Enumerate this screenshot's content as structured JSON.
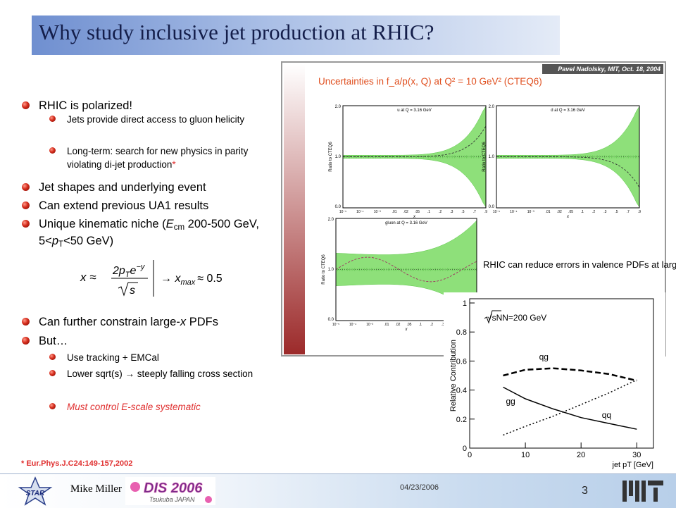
{
  "header": {
    "title": "Why study inclusive jet production at RHIC?"
  },
  "bullets": [
    {
      "level": 1,
      "parts": [
        {
          "text": "RHIC is polarized!"
        }
      ]
    },
    {
      "level": 2,
      "parts": [
        {
          "text": "Jets provide direct access to gluon helicity"
        }
      ]
    },
    {
      "level": 2,
      "parts": [
        {
          "text": "Long-term: search for new physics in parity violating di-jet production"
        },
        {
          "text": "*",
          "color": "#e03030"
        }
      ]
    },
    {
      "level": 1,
      "parts": [
        {
          "text": "Jet shapes and underlying event"
        }
      ]
    },
    {
      "level": 1,
      "parts": [
        {
          "text": "Can extend previous UA1 results"
        }
      ]
    },
    {
      "level": 1,
      "parts": [
        {
          "text": "Unique kinematic niche ("
        },
        {
          "text": "E",
          "italic": true
        },
        {
          "text": "cm",
          "sub": true
        },
        {
          "text": " 200-500 GeV, 5<"
        },
        {
          "text": "p",
          "italic": true
        },
        {
          "text": "T",
          "sub": true
        },
        {
          "text": "<50 GeV)"
        }
      ]
    },
    {
      "level": 1,
      "parts": [
        {
          "text": "Can further constrain large-"
        },
        {
          "text": "x",
          "italic": true
        },
        {
          "text": " PDFs"
        }
      ]
    },
    {
      "level": 1,
      "parts": [
        {
          "text": "But…"
        }
      ]
    },
    {
      "level": 2,
      "parts": [
        {
          "text": "Use tracking + EMCal"
        }
      ]
    },
    {
      "level": 2,
      "parts": [
        {
          "text": "Lower sqrt(s) "
        },
        {
          "text": "→"
        },
        {
          "text": " steeply falling cross section"
        }
      ]
    },
    {
      "level": 2,
      "parts": [
        {
          "text": "Must control E-scale systematic",
          "italic": true,
          "color": "#e03030"
        }
      ]
    }
  ],
  "formula": {
    "lhs": "x ≈",
    "numerator": "2p",
    "numerator_sub": "T",
    "numerator_exp": "e",
    "numerator_sup": "−y",
    "denominator": "s",
    "arrow": "→ x",
    "rhs_sub": "max",
    "rhs": "≈ 0.5"
  },
  "footnote": "* Eur.Phys.J.C24:149-157,2002",
  "footer": {
    "author": "Mike Miller",
    "date": "04/23/2006",
    "page": "3",
    "logo_left": "STAR",
    "logo_center": "DIS 2006",
    "logo_center_sub": "Tsukuba JAPAN"
  },
  "figure": {
    "stamp": "Pavel Nadolsky, MIT, Oct. 18, 2004",
    "title": "Uncertainties in f_a/p(x, Q) at Q² = 10 GeV² (CTEQ6)",
    "ylabel": "Ratio to CTEQ6",
    "xlabel": "x",
    "yticks": [
      "2.0",
      "1.0",
      "0.0"
    ],
    "xticks": [
      "10⁻⁵",
      "10⁻⁴",
      "10⁻³",
      ".01",
      ".02",
      ".05",
      ".1",
      ".2",
      ".3",
      ".5",
      ".7",
      ".9"
    ],
    "panels": [
      {
        "label": "u at Q = 3.16 GeV"
      },
      {
        "label": "d at Q = 3.16 GeV"
      },
      {
        "label": "gluon at Q = 3.16 GeV"
      }
    ],
    "note": "RHIC can reduce errors in valence PDFs at large x"
  },
  "chart_data": {
    "type": "line",
    "title": "√sNN=200 GeV",
    "xlabel": "jet pT [GeV]",
    "ylabel": "Relative Contribution",
    "x": [
      6,
      10,
      15,
      20,
      25,
      30
    ],
    "series": [
      {
        "name": "qg",
        "color": "#000000",
        "dash": "dashed",
        "values": [
          0.5,
          0.54,
          0.55,
          0.535,
          0.51,
          0.465
        ]
      },
      {
        "name": "gg",
        "color": "#000000",
        "dash": "solid",
        "values": [
          0.42,
          0.34,
          0.27,
          0.21,
          0.17,
          0.13
        ]
      },
      {
        "name": "qq",
        "color": "#000000",
        "dash": "dotted",
        "values": [
          0.09,
          0.15,
          0.22,
          0.3,
          0.38,
          0.47
        ]
      }
    ],
    "xlim": [
      0,
      33
    ],
    "ylim": [
      0,
      1
    ],
    "xticks": [
      0,
      10,
      20,
      30
    ],
    "yticks": [
      0,
      0.2,
      0.4,
      0.6,
      0.8,
      1
    ]
  }
}
